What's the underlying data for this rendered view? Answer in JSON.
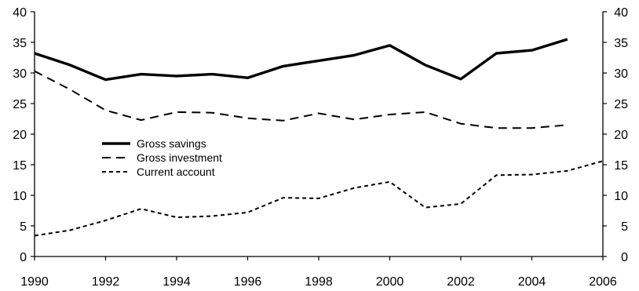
{
  "chart_data": {
    "type": "line",
    "title": "",
    "xlabel": "",
    "ylabel": "",
    "x": [
      1990,
      1991,
      1992,
      1993,
      1994,
      1995,
      1996,
      1997,
      1998,
      1999,
      2000,
      2001,
      2002,
      2003,
      2004,
      2005,
      2006
    ],
    "xlim": [
      1990,
      2006
    ],
    "ylim": [
      0,
      40
    ],
    "x_ticks": [
      "1990",
      "1992",
      "1994",
      "1996",
      "1998",
      "2000",
      "2002",
      "2004",
      "2006"
    ],
    "y_ticks": [
      "0",
      "5",
      "10",
      "15",
      "20",
      "25",
      "30",
      "35",
      "40"
    ],
    "y_ticks_right": [
      "0",
      "5",
      "10",
      "15",
      "20",
      "25",
      "30",
      "35",
      "40"
    ],
    "grid": false,
    "legend_position": "center-left",
    "series": [
      {
        "name": "Gross savings",
        "style": "solid-thick",
        "color": "#000000",
        "values": [
          33.2,
          31.3,
          28.9,
          29.8,
          29.5,
          29.8,
          29.2,
          31.1,
          32.0,
          32.9,
          34.5,
          31.3,
          29.0,
          33.2,
          33.7,
          35.5,
          null
        ]
      },
      {
        "name": "Gross investment",
        "style": "long-dash",
        "color": "#000000",
        "values": [
          30.3,
          27.3,
          23.9,
          22.3,
          23.6,
          23.5,
          22.6,
          22.2,
          23.4,
          22.4,
          23.2,
          23.6,
          21.7,
          21.0,
          21.0,
          21.5,
          null
        ]
      },
      {
        "name": "Current account",
        "style": "short-dash",
        "color": "#000000",
        "values": [
          3.4,
          4.3,
          5.9,
          7.8,
          6.4,
          6.6,
          7.2,
          9.6,
          9.5,
          11.2,
          12.2,
          8.0,
          8.6,
          13.3,
          13.4,
          14.0,
          15.6
        ]
      }
    ]
  }
}
